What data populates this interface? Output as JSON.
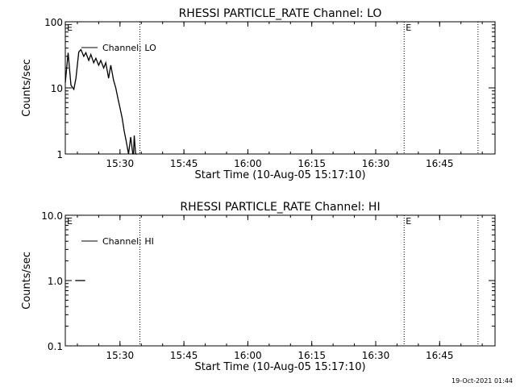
{
  "timestamp": "19-Oct-2021 01:44",
  "chart_data": [
    {
      "type": "line",
      "title": "RHESSI PARTICLE_RATE Channel: LO",
      "xlabel": "Start Time (10-Aug-05 15:17:10)",
      "ylabel": "Counts/sec",
      "y_scale": "log",
      "ylim": [
        1,
        100
      ],
      "y_ticks": [
        {
          "value": 1,
          "label": "1"
        },
        {
          "value": 10,
          "label": "10"
        },
        {
          "value": 100,
          "label": "100"
        }
      ],
      "xlim": [
        "15:17:10",
        "16:58:00"
      ],
      "x_ticks": [
        "15:30",
        "15:45",
        "16:00",
        "16:15",
        "16:30",
        "16:45"
      ],
      "event_lines": [
        {
          "time": "15:34:40",
          "label": ""
        },
        {
          "time": "16:36:40",
          "label": "E"
        },
        {
          "time": "16:54:00",
          "label": ""
        }
      ],
      "start_marker": "E",
      "legend": {
        "position": "top-left",
        "entries": [
          "Channel: LO"
        ]
      },
      "series": [
        {
          "name": "Channel: LO",
          "x": [
            "15:17:10",
            "15:17:50",
            "15:18:30",
            "15:19:10",
            "15:19:40",
            "15:20:20",
            "15:20:50",
            "15:21:30",
            "15:22:00",
            "15:22:40",
            "15:23:10",
            "15:23:50",
            "15:24:20",
            "15:25:00",
            "15:25:30",
            "15:26:10",
            "15:26:40",
            "15:27:20",
            "15:27:50",
            "15:28:30",
            "15:29:00",
            "15:29:30",
            "15:30:00",
            "15:30:30",
            "15:31:00",
            "15:31:30",
            "15:32:00",
            "15:32:30",
            "15:33:00",
            "15:33:10",
            "15:33:20",
            "15:33:40",
            "15:34:00"
          ],
          "y": [
            12,
            34,
            11,
            9.5,
            14,
            35,
            38,
            30,
            34,
            26,
            32,
            24,
            28,
            22,
            26,
            20,
            24,
            14,
            22,
            13,
            10,
            7,
            5,
            3.5,
            2.2,
            1.5,
            1.0,
            1.8,
            1.0,
            1.0,
            1.9,
            1.0,
            1.0
          ]
        }
      ]
    },
    {
      "type": "line",
      "title": "RHESSI PARTICLE_RATE Channel: HI",
      "xlabel": "Start Time (10-Aug-05 15:17:10)",
      "ylabel": "Counts/sec",
      "y_scale": "log",
      "ylim": [
        0.1,
        10
      ],
      "y_ticks": [
        {
          "value": 0.1,
          "label": "0.1"
        },
        {
          "value": 1,
          "label": "1.0"
        },
        {
          "value": 10,
          "label": "10.0"
        }
      ],
      "xlim": [
        "15:17:10",
        "16:58:00"
      ],
      "x_ticks": [
        "15:30",
        "15:45",
        "16:00",
        "16:15",
        "16:30",
        "16:45"
      ],
      "event_lines": [
        {
          "time": "15:34:40",
          "label": ""
        },
        {
          "time": "16:36:40",
          "label": "E"
        },
        {
          "time": "16:54:00",
          "label": ""
        }
      ],
      "start_marker": "E",
      "legend": {
        "position": "top-left",
        "entries": [
          "Channel: HI"
        ]
      },
      "series": [
        {
          "name": "Channel: HI",
          "x": [
            "15:19:30",
            "15:21:50"
          ],
          "y": [
            1.0,
            1.0
          ]
        }
      ]
    }
  ]
}
